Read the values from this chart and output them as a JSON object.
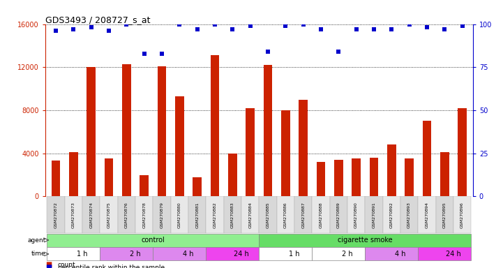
{
  "title": "GDS3493 / 208727_s_at",
  "samples": [
    "GSM270872",
    "GSM270873",
    "GSM270874",
    "GSM270875",
    "GSM270876",
    "GSM270878",
    "GSM270879",
    "GSM270880",
    "GSM270881",
    "GSM270882",
    "GSM270883",
    "GSM270884",
    "GSM270885",
    "GSM270886",
    "GSM270887",
    "GSM270888",
    "GSM270889",
    "GSM270890",
    "GSM270891",
    "GSM270892",
    "GSM270893",
    "GSM270894",
    "GSM270895",
    "GSM270896"
  ],
  "counts": [
    3300,
    4100,
    12000,
    3500,
    12300,
    2000,
    12100,
    9300,
    1800,
    13100,
    4000,
    8200,
    12200,
    8000,
    9000,
    3200,
    3400,
    3500,
    3600,
    4800,
    3500,
    7000,
    4100,
    8200
  ],
  "percentile_ranks": [
    96,
    97,
    98,
    96,
    100,
    83,
    83,
    100,
    97,
    100,
    97,
    99,
    84,
    99,
    100,
    97,
    84,
    97,
    97,
    97,
    100,
    98,
    97,
    99
  ],
  "bar_color": "#cc2200",
  "dot_color": "#0000cc",
  "ylim_left": [
    0,
    16000
  ],
  "ylim_right": [
    0,
    100
  ],
  "yticks_left": [
    0,
    4000,
    8000,
    12000,
    16000
  ],
  "yticks_right": [
    0,
    25,
    50,
    75,
    100
  ],
  "ylabel_left_color": "#cc2200",
  "ylabel_right_color": "#0000cc",
  "control_color": "#90ee90",
  "cigarette_color": "#66dd66",
  "time_segments": [
    {
      "label": "1 h",
      "start": 0,
      "end": 3,
      "color": "#ffffff"
    },
    {
      "label": "2 h",
      "start": 3,
      "end": 6,
      "color": "#dd88ee"
    },
    {
      "label": "4 h",
      "start": 6,
      "end": 9,
      "color": "#dd88ee"
    },
    {
      "label": "24 h",
      "start": 9,
      "end": 12,
      "color": "#ee44ee"
    },
    {
      "label": "1 h",
      "start": 12,
      "end": 15,
      "color": "#ffffff"
    },
    {
      "label": "2 h",
      "start": 15,
      "end": 18,
      "color": "#ffffff"
    },
    {
      "label": "4 h",
      "start": 18,
      "end": 21,
      "color": "#dd88ee"
    },
    {
      "label": "24 h",
      "start": 21,
      "end": 24,
      "color": "#ee44ee"
    }
  ]
}
